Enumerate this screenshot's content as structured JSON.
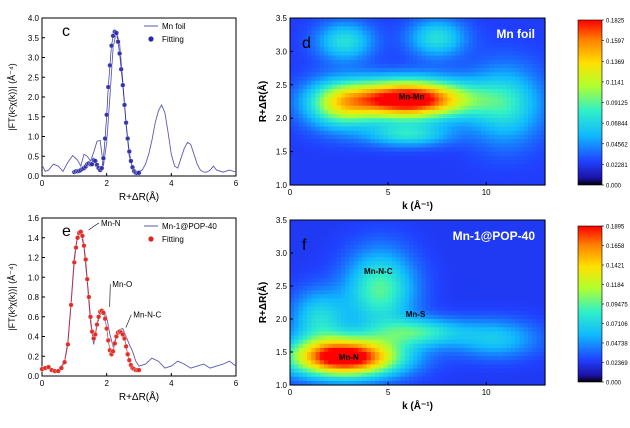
{
  "chart_data": [
    {
      "panel": "c",
      "type": "line",
      "xlabel": "R+ΔR(Å)",
      "ylabel": "|FT(k²χ(k))| (Å⁻⁴)",
      "xlim": [
        0,
        6
      ],
      "ylim": [
        0,
        4.0
      ],
      "xticks": [
        0,
        2,
        4,
        6
      ],
      "yticks": [
        0.0,
        0.5,
        1.0,
        1.5,
        2.0,
        2.5,
        3.0,
        3.5,
        4.0
      ],
      "legend": [
        "Mn foil",
        "Fitting"
      ],
      "series": [
        {
          "name": "Mn foil",
          "color": "#5a5ab4",
          "x": [
            0.0,
            0.1,
            0.2,
            0.35,
            0.5,
            0.65,
            0.8,
            0.95,
            1.1,
            1.2,
            1.3,
            1.4,
            1.5,
            1.6,
            1.7,
            1.8,
            1.9,
            2.0,
            2.1,
            2.2,
            2.3,
            2.4,
            2.5,
            2.6,
            2.7,
            2.8,
            2.9,
            3.0,
            3.1,
            3.2,
            3.3,
            3.4,
            3.5,
            3.6,
            3.7,
            3.8,
            3.9,
            4.0,
            4.1,
            4.2,
            4.3,
            4.4,
            4.5,
            4.6,
            4.7,
            4.8,
            4.9,
            5.0,
            5.1,
            5.2,
            5.3,
            5.4,
            5.6,
            5.8,
            6.0
          ],
          "y": [
            0.28,
            0.12,
            0.15,
            0.3,
            0.25,
            0.12,
            0.35,
            0.52,
            0.4,
            0.25,
            0.55,
            0.5,
            0.38,
            0.6,
            0.88,
            0.9,
            0.25,
            0.85,
            2.0,
            3.25,
            3.65,
            3.35,
            2.4,
            1.3,
            0.5,
            0.2,
            0.1,
            0.12,
            0.15,
            0.3,
            0.55,
            0.9,
            1.35,
            1.65,
            1.8,
            1.6,
            1.1,
            0.55,
            0.25,
            0.2,
            0.45,
            0.7,
            0.85,
            0.8,
            0.55,
            0.3,
            0.15,
            0.1,
            0.1,
            0.15,
            0.25,
            0.15,
            0.1,
            0.15,
            0.1
          ]
        },
        {
          "name": "Fitting",
          "color": "#2a2aa8",
          "x": [
            1.0,
            1.05,
            1.1,
            1.15,
            1.2,
            1.25,
            1.3,
            1.35,
            1.4,
            1.45,
            1.5,
            1.55,
            1.6,
            1.65,
            1.7,
            1.75,
            1.8,
            1.85,
            1.9,
            1.95,
            2.0,
            2.05,
            2.1,
            2.15,
            2.2,
            2.25,
            2.3,
            2.35,
            2.4,
            2.45,
            2.5,
            2.55,
            2.6,
            2.65,
            2.7,
            2.75,
            2.8,
            2.85,
            2.9,
            2.95,
            3.0
          ],
          "y": [
            0.1,
            0.12,
            0.12,
            0.13,
            0.15,
            0.18,
            0.2,
            0.24,
            0.3,
            0.32,
            0.3,
            0.3,
            0.4,
            0.38,
            0.28,
            0.2,
            0.15,
            0.2,
            0.45,
            0.95,
            1.55,
            2.25,
            2.8,
            3.3,
            3.55,
            3.65,
            3.62,
            3.4,
            3.1,
            2.7,
            2.3,
            1.8,
            1.35,
            0.95,
            0.62,
            0.38,
            0.22,
            0.12,
            0.08,
            0.07,
            0.08
          ]
        }
      ]
    },
    {
      "panel": "d",
      "type": "heatmap",
      "title": "Mn foil",
      "xlabel": "k (Å⁻¹)",
      "ylabel": "R+ΔR(Å)",
      "xlim": [
        0,
        13
      ],
      "ylim": [
        1.0,
        3.5
      ],
      "xticks": [
        0,
        5,
        10
      ],
      "yticks": [
        1.0,
        1.5,
        2.0,
        2.5,
        3.0,
        3.5
      ],
      "annotations": [
        {
          "text": "Mn-Mn",
          "k": 6.2,
          "r": 2.28
        }
      ],
      "peaks": [
        {
          "k": 6.0,
          "r": 2.28,
          "value": 0.1825,
          "sk": 2.2,
          "sr": 0.2
        },
        {
          "k": 2.5,
          "r": 2.2,
          "value": 0.07,
          "sk": 1.2,
          "sr": 0.25
        },
        {
          "k": 6.0,
          "r": 1.75,
          "value": 0.05,
          "sk": 1.5,
          "sr": 0.12
        },
        {
          "k": 11.0,
          "r": 2.2,
          "value": 0.05,
          "sk": 1.3,
          "sr": 0.4
        },
        {
          "k": 2.8,
          "r": 3.15,
          "value": 0.05,
          "sk": 1.0,
          "sr": 0.2
        },
        {
          "k": 7.5,
          "r": 3.2,
          "value": 0.05,
          "sk": 1.0,
          "sr": 0.2
        }
      ],
      "colorbar": {
        "ticks": [
          "0.1825",
          "0.1597",
          "0.1369",
          "0.1141",
          "0.09125",
          "0.06844",
          "0.04562",
          "0.02281",
          "0.000"
        ],
        "max": 0.1825
      }
    },
    {
      "panel": "e",
      "type": "line",
      "xlabel": "R+ΔR(Å)",
      "ylabel": "|FT(k³χ(k))| (Å⁻⁴)",
      "xlim": [
        0,
        6
      ],
      "ylim": [
        0,
        1.6
      ],
      "xticks": [
        0,
        2,
        4,
        6
      ],
      "yticks": [
        0.0,
        0.2,
        0.4,
        0.6,
        0.8,
        1.0,
        1.2,
        1.4,
        1.6
      ],
      "legend": [
        "Mn-1@POP-40",
        "Fitting"
      ],
      "annotations": [
        {
          "text": "Mn-N",
          "x": 1.7,
          "y": 1.52
        },
        {
          "text": "Mn-O",
          "x": 2.05,
          "y": 0.9
        },
        {
          "text": "Mn-N-C",
          "x": 2.7,
          "y": 0.59
        }
      ],
      "series": [
        {
          "name": "Mn-1@POP-40",
          "color": "#5a5ab4",
          "x": [
            0.0,
            0.1,
            0.2,
            0.3,
            0.4,
            0.5,
            0.6,
            0.7,
            0.8,
            0.9,
            1.0,
            1.1,
            1.2,
            1.3,
            1.4,
            1.5,
            1.6,
            1.7,
            1.8,
            1.9,
            2.0,
            2.1,
            2.2,
            2.3,
            2.4,
            2.5,
            2.6,
            2.7,
            2.8,
            2.9,
            3.0,
            3.2,
            3.4,
            3.6,
            3.8,
            4.0,
            4.2,
            4.4,
            4.6,
            4.8,
            5.0,
            5.2,
            5.4,
            5.6,
            5.8,
            6.0
          ],
          "y": [
            0.08,
            0.09,
            0.1,
            0.06,
            0.05,
            0.06,
            0.1,
            0.15,
            0.35,
            0.75,
            1.2,
            1.43,
            1.46,
            1.3,
            0.95,
            0.55,
            0.32,
            0.52,
            0.62,
            0.66,
            0.6,
            0.42,
            0.3,
            0.4,
            0.47,
            0.48,
            0.4,
            0.32,
            0.25,
            0.15,
            0.1,
            0.12,
            0.18,
            0.15,
            0.08,
            0.1,
            0.15,
            0.12,
            0.08,
            0.1,
            0.12,
            0.08,
            0.1,
            0.12,
            0.15,
            0.1
          ]
        },
        {
          "name": "Fitting",
          "color": "#e0241c",
          "x": [
            0.0,
            0.1,
            0.2,
            0.3,
            0.4,
            0.5,
            0.6,
            0.7,
            0.8,
            0.9,
            1.0,
            1.05,
            1.1,
            1.15,
            1.2,
            1.25,
            1.3,
            1.35,
            1.4,
            1.45,
            1.5,
            1.55,
            1.6,
            1.65,
            1.7,
            1.75,
            1.8,
            1.85,
            1.9,
            1.95,
            2.0,
            2.05,
            2.1,
            2.15,
            2.2,
            2.25,
            2.3,
            2.35,
            2.4,
            2.45,
            2.5,
            2.55,
            2.6,
            2.65,
            2.7,
            2.75,
            2.8,
            2.85,
            2.9,
            2.95,
            3.0
          ],
          "y": [
            0.07,
            0.08,
            0.09,
            0.06,
            0.05,
            0.05,
            0.08,
            0.14,
            0.32,
            0.72,
            1.15,
            1.3,
            1.4,
            1.45,
            1.46,
            1.42,
            1.32,
            1.18,
            0.98,
            0.8,
            0.6,
            0.45,
            0.38,
            0.42,
            0.52,
            0.6,
            0.65,
            0.66,
            0.64,
            0.58,
            0.48,
            0.36,
            0.26,
            0.22,
            0.25,
            0.33,
            0.4,
            0.44,
            0.45,
            0.44,
            0.42,
            0.38,
            0.3,
            0.22,
            0.16,
            0.11,
            0.08,
            0.07,
            0.06,
            0.06,
            0.06
          ]
        }
      ]
    },
    {
      "panel": "f",
      "type": "heatmap",
      "title": "Mn-1@POP-40",
      "xlabel": "k (Å⁻¹)",
      "ylabel": "R+ΔR(Å)",
      "xlim": [
        0,
        13
      ],
      "ylim": [
        1.0,
        3.5
      ],
      "xticks": [
        0,
        5,
        10
      ],
      "yticks": [
        1.0,
        1.5,
        2.0,
        2.5,
        3.0,
        3.5
      ],
      "annotations": [
        {
          "text": "Mn-N-C",
          "k": 4.5,
          "r": 2.68
        },
        {
          "text": "Mn-S",
          "k": 6.4,
          "r": 2.03
        },
        {
          "text": "Mn-N",
          "k": 3.0,
          "r": 1.38
        }
      ],
      "peaks": [
        {
          "k": 2.8,
          "r": 1.42,
          "value": 0.1895,
          "sk": 1.9,
          "sr": 0.2
        },
        {
          "k": 4.6,
          "r": 2.45,
          "value": 0.07,
          "sk": 1.2,
          "sr": 0.4
        },
        {
          "k": 6.5,
          "r": 1.8,
          "value": 0.06,
          "sk": 1.6,
          "sr": 0.15
        },
        {
          "k": 1.5,
          "r": 2.0,
          "value": 0.05,
          "sk": 1.0,
          "sr": 0.3
        },
        {
          "k": 10.5,
          "r": 1.7,
          "value": 0.04,
          "sk": 1.5,
          "sr": 0.2
        }
      ],
      "colorbar": {
        "ticks": [
          "0.1895",
          "0.1658",
          "0.1421",
          "0.1184",
          "0.09475",
          "0.07106",
          "0.04738",
          "0.02369",
          "0.000"
        ],
        "max": 0.1895
      }
    }
  ]
}
